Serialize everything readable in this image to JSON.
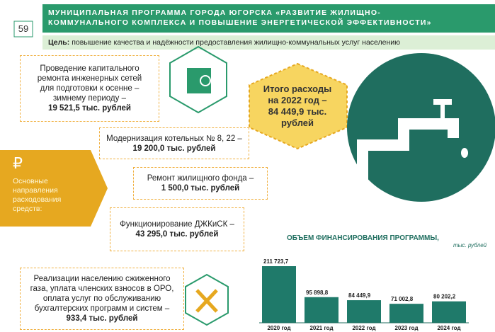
{
  "header": {
    "page_number": "59",
    "title_lines": [
      "МУНИЦИПАЛЬНАЯ ПРОГРАММА ГОРОДА ЮГОРСКА «РАЗВИТИЕ ЖИЛИЩНО-",
      "КОММУНАЛЬНОГО КОМПЛЕКСА И ПОВЫШЕНИЕ ЭНЕРГЕТИЧЕСКОЙ ЭФФЕКТИВНОСТИ»"
    ],
    "goal_label": "Цель:",
    "goal_text": "повышение качества и надёжности предоставления жилищно-коммунальных услуг населению"
  },
  "directions": {
    "symbol": "₽",
    "lines": [
      "Основные",
      "направления",
      "расходования",
      "средств:"
    ]
  },
  "total": {
    "lines": [
      "Итого расходы",
      "на 2022 год –",
      "84 449,9 тыс.",
      "рублей"
    ]
  },
  "items": [
    {
      "lines": [
        "Проведение капитального",
        "ремонта инженерных сетей",
        "для подготовки к осенне –",
        "зимнему периоду –"
      ],
      "amount": "19 521,5 тыс. рублей"
    },
    {
      "lines": [
        "Модернизация котельных № 8, 22 –"
      ],
      "amount": "19 200,0 тыс. рублей"
    },
    {
      "lines": [
        "Ремонт жилищного фонда –"
      ],
      "amount": "1 500,0 тыс. рублей"
    },
    {
      "lines": [
        "Функционирование ДЖКиСК –"
      ],
      "amount": "43 295,0 тыс. рублей"
    },
    {
      "lines": [
        "Реализации населению сжиженного",
        "газа, уплата членских взносов в ОРО,",
        "оплата услуг по обслуживанию",
        "бухгалтерских программ и систем –"
      ],
      "amount": "933,4 тыс. рублей"
    }
  ],
  "chart_data": {
    "type": "bar",
    "title": "ОБЪЕМ ФИНАНСИРОВАНИЯ ПРОГРАММЫ,",
    "unit": "тыс. рублей",
    "categories": [
      "2020 год",
      "2021 год",
      "2022 год",
      "2023 год",
      "2024 год"
    ],
    "values": [
      211723.7,
      95898.8,
      84449.9,
      71002.8,
      80202.2
    ],
    "value_labels": [
      "211 723,7",
      "95 898,8",
      "84 449,9",
      "71 002,8",
      "80 202,2"
    ],
    "color": "#1f7a6a"
  }
}
